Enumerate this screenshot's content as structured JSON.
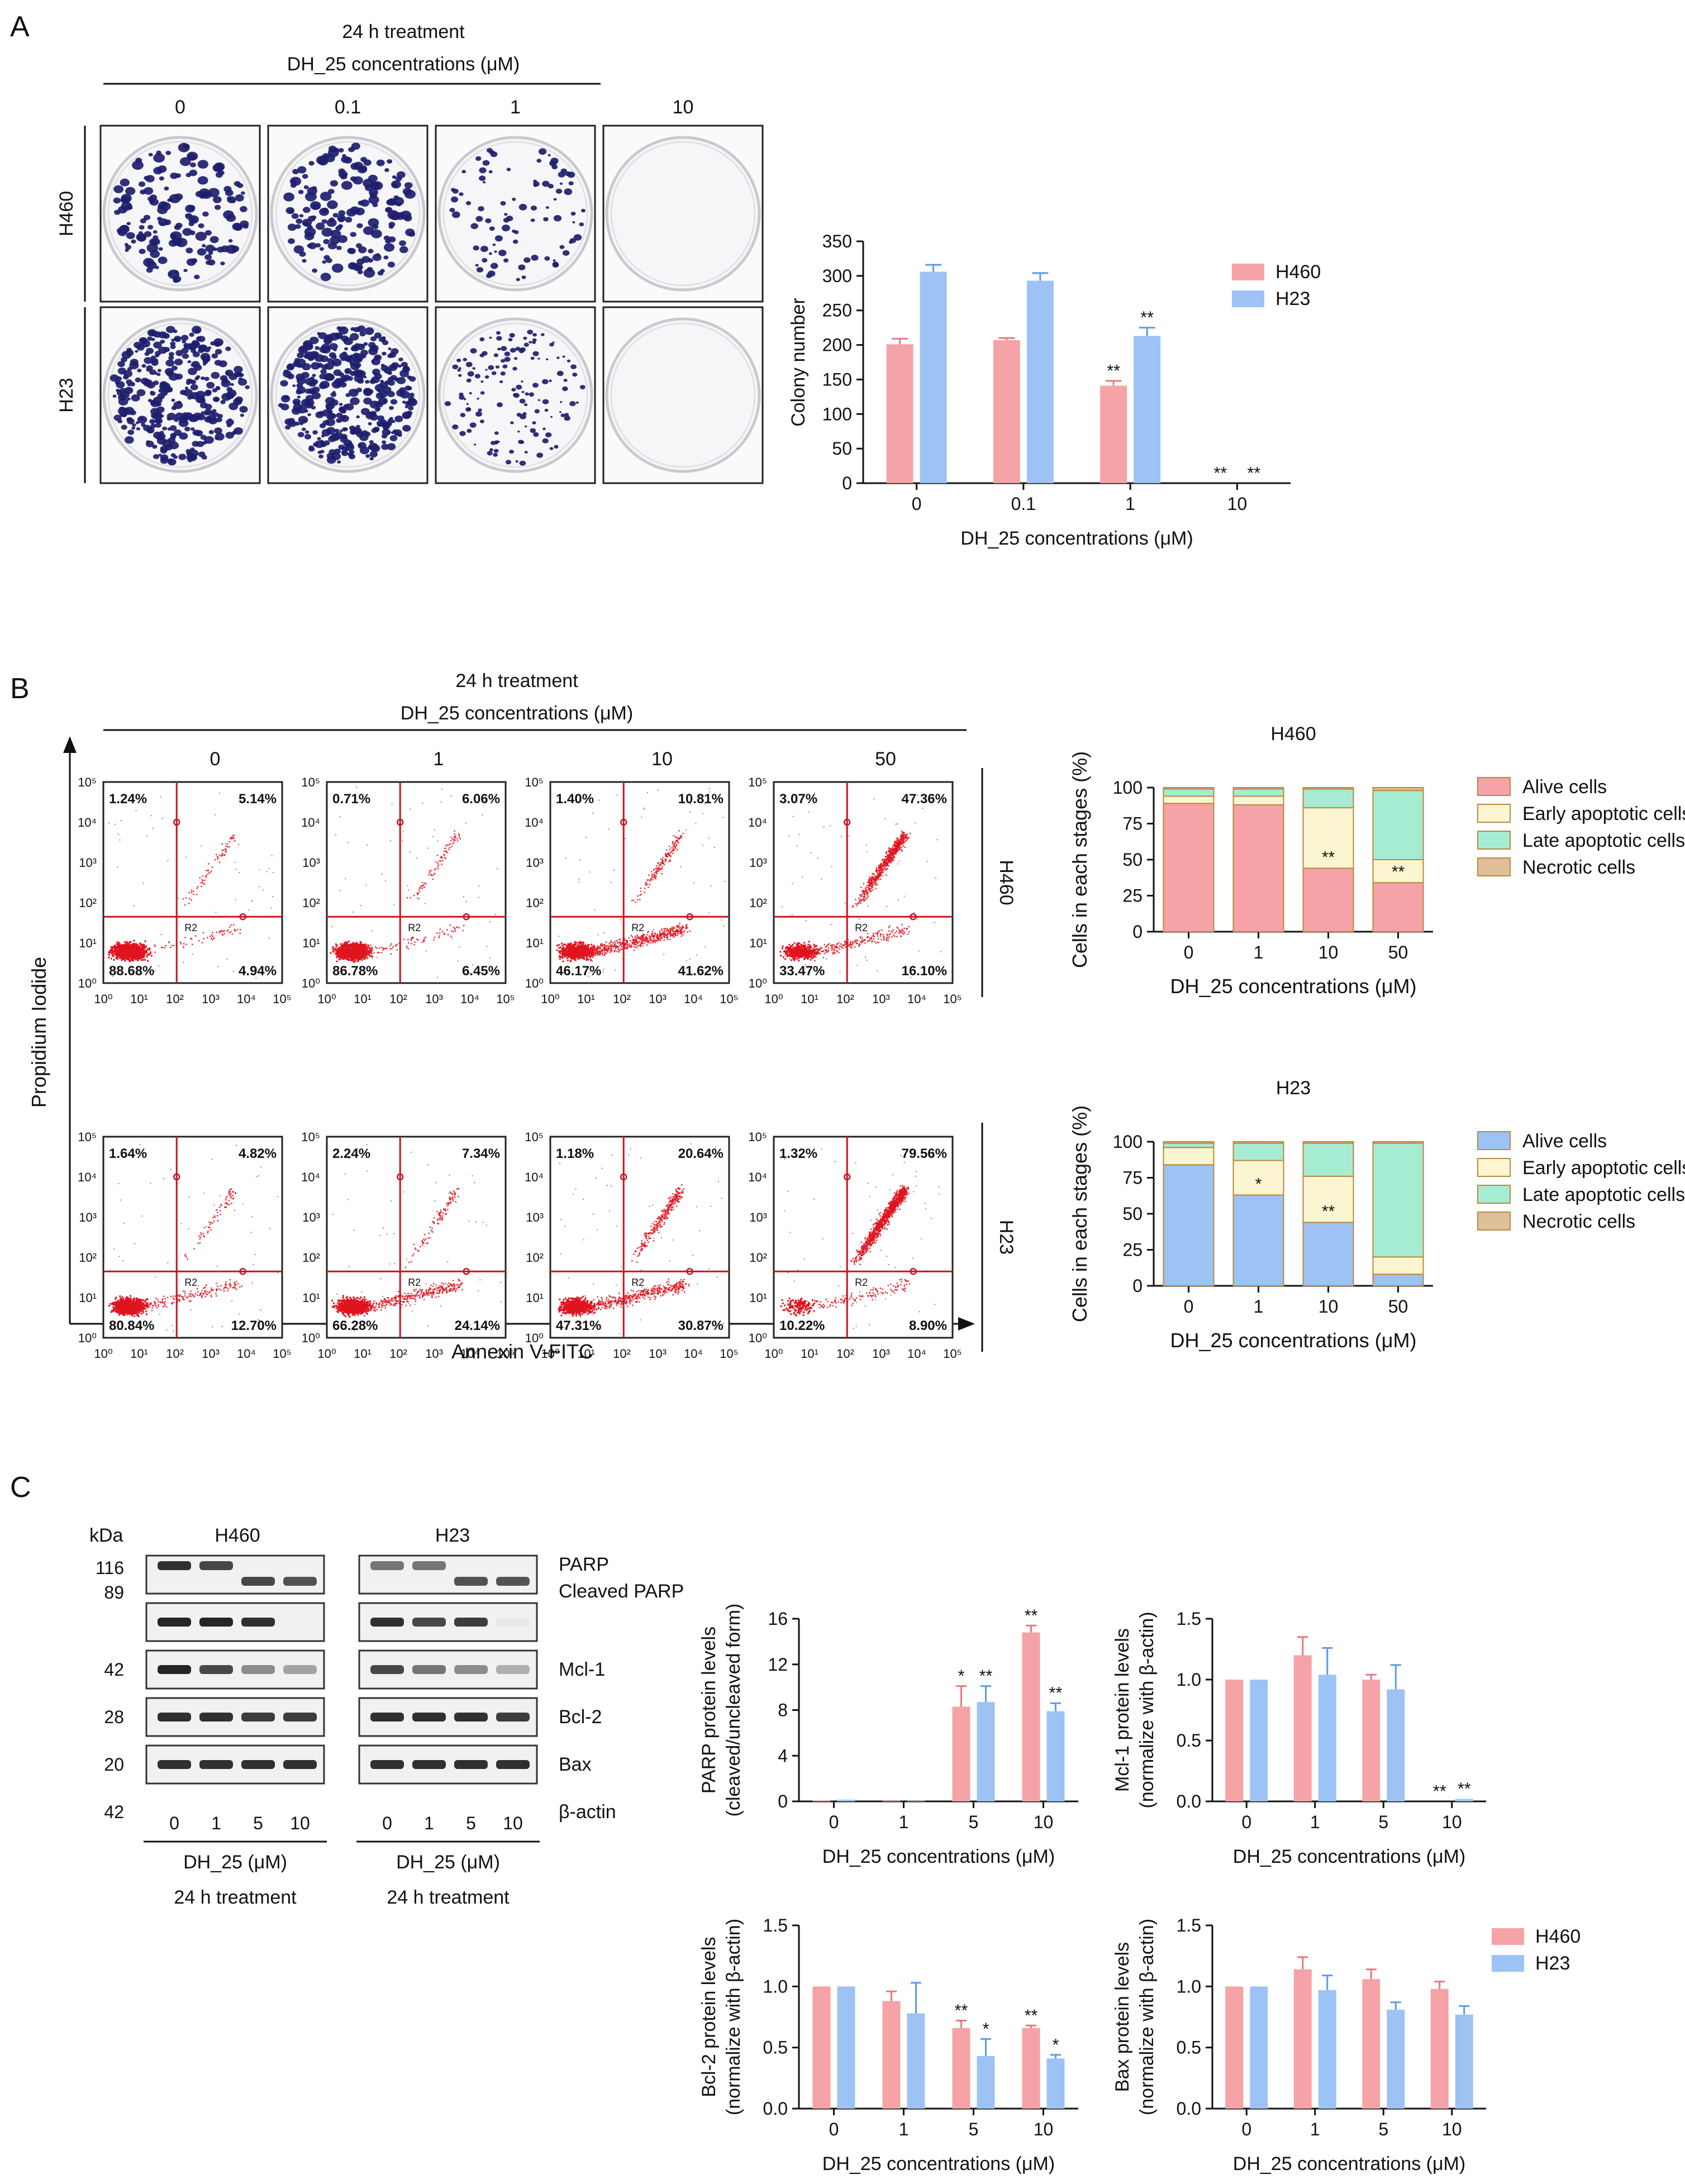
{
  "panel_labels": [
    "A",
    "B",
    "C"
  ],
  "colors": {
    "h460": "#f5a3a6",
    "h23": "#9cc3f3",
    "h460_dark": "#e8777c",
    "h23_dark": "#5c9be8",
    "early": "#fcf5d2",
    "late": "#a6ecd2",
    "necrotic": "#dfc09b",
    "dot": "#e0141e",
    "gate": "#c8141e",
    "colony": "#1d1e6e"
  },
  "panelA": {
    "treatment": "24 h treatment",
    "conc_title": "DH_25 concentrations (μM)",
    "columns": [
      "0",
      "0.1",
      "1",
      "10"
    ],
    "rows": [
      "H460",
      "H23"
    ]
  },
  "panelB": {
    "treatment": "24 h treatment",
    "conc_title": "DH_25 concentrations (μM)",
    "columns": [
      "0",
      "1",
      "10",
      "50"
    ],
    "rows": [
      "H460",
      "H23"
    ],
    "y_axis_label": "Propidium Iodide",
    "x_axis_label": "Annexin V-FITC",
    "gate_label": "R2",
    "tick_labels": [
      "10⁰",
      "10¹",
      "10²",
      "10³",
      "10⁴",
      "10⁵"
    ],
    "quadrants": [
      [
        [
          "1.24%",
          "5.14%",
          "88.68%",
          "4.94%"
        ],
        [
          "0.71%",
          "6.06%",
          "86.78%",
          "6.45%"
        ],
        [
          "1.40%",
          "10.81%",
          "46.17%",
          "41.62%"
        ],
        [
          "3.07%",
          "47.36%",
          "33.47%",
          "16.10%"
        ]
      ],
      [
        [
          "1.64%",
          "4.82%",
          "80.84%",
          "12.70%"
        ],
        [
          "2.24%",
          "7.34%",
          "66.28%",
          "24.14%"
        ],
        [
          "1.18%",
          "20.64%",
          "47.31%",
          "30.87%"
        ],
        [
          "1.32%",
          "79.56%",
          "10.22%",
          "8.90%"
        ]
      ]
    ]
  },
  "panelC": {
    "kda_label": "kDa",
    "cell_lines": [
      "H460",
      "H23"
    ],
    "markers": [
      {
        "kda": "116",
        "name": "PARP"
      },
      {
        "kda": "89",
        "name": "Cleaved PARP"
      },
      {
        "kda": "42",
        "name": "Mcl-1"
      },
      {
        "kda": "28",
        "name": "Bcl-2"
      },
      {
        "kda": "20",
        "name": "Bax"
      },
      {
        "kda": "42",
        "name": "β-actin"
      }
    ],
    "lane_labels": [
      "0",
      "1",
      "5",
      "10"
    ],
    "dose_label": "DH_25 (μM)",
    "treatment": "24 h treatment"
  },
  "chart_data": [
    {
      "id": "colony",
      "type": "bar",
      "title": "",
      "categories": [
        "0",
        "0.1",
        "1",
        "10"
      ],
      "xlabel": "DH_25 concentrations (μM)",
      "ylabel": "Colony number",
      "ylim": [
        0,
        350
      ],
      "yticks": [
        "0",
        "50",
        "100",
        "150",
        "200",
        "250",
        "300",
        "350"
      ],
      "series": [
        {
          "name": "H460",
          "values": [
            201,
            207,
            141,
            0
          ],
          "errors": [
            8,
            3,
            7,
            0
          ],
          "sig": [
            "",
            "",
            "**",
            "**"
          ]
        },
        {
          "name": "H23",
          "values": [
            306,
            293,
            213,
            0
          ],
          "errors": [
            10,
            11,
            12,
            0
          ],
          "sig": [
            "",
            "",
            "**",
            "**"
          ]
        }
      ],
      "legend": "top-right"
    },
    {
      "id": "stack_h460",
      "type": "bar",
      "stacked": true,
      "title": "H460",
      "categories": [
        "0",
        "1",
        "10",
        "50"
      ],
      "xlabel": "DH_25 concentrations (μM)",
      "ylabel": "Cells in each stages (%)",
      "ylim": [
        0,
        100
      ],
      "yticks": [
        "0",
        "25",
        "50",
        "75",
        "100"
      ],
      "series": [
        {
          "name": "Alive cells",
          "values": [
            89,
            88,
            44,
            34
          ]
        },
        {
          "name": "Early apoptotic cells",
          "values": [
            5,
            6,
            42,
            16
          ]
        },
        {
          "name": "Late apoptotic cells",
          "values": [
            5,
            5,
            13,
            48
          ]
        },
        {
          "name": "Necrotic cells",
          "values": [
            1,
            1,
            1,
            2
          ]
        }
      ],
      "sig": [
        "",
        "",
        "**",
        "**"
      ],
      "legend": "right"
    },
    {
      "id": "stack_h23",
      "type": "bar",
      "stacked": true,
      "title": "H23",
      "categories": [
        "0",
        "1",
        "10",
        "50"
      ],
      "xlabel": "DH_25 concentrations (μM)",
      "ylabel": "Cells in each stages (%)",
      "ylim": [
        0,
        100
      ],
      "yticks": [
        "0",
        "25",
        "50",
        "75",
        "100"
      ],
      "series": [
        {
          "name": "Alive cells",
          "values": [
            84,
            63,
            44,
            8
          ]
        },
        {
          "name": "Early apoptotic cells",
          "values": [
            12,
            24,
            32,
            12
          ]
        },
        {
          "name": "Late apoptotic cells",
          "values": [
            3,
            12,
            23,
            79
          ]
        },
        {
          "name": "Necrotic cells",
          "values": [
            1,
            1,
            1,
            1
          ]
        }
      ],
      "sig": [
        "",
        "*",
        "**",
        ""
      ],
      "legend": "right"
    },
    {
      "id": "parp",
      "type": "bar",
      "title": "",
      "categories": [
        "0",
        "1",
        "5",
        "10"
      ],
      "xlabel": "DH_25 concentrations (μM)",
      "ylabel": "PARP protein levels (cleaved/uncleaved form)",
      "ylim": [
        0,
        16
      ],
      "yticks": [
        "0",
        "4",
        "8",
        "12",
        "16"
      ],
      "series": [
        {
          "name": "H460",
          "values": [
            0.1,
            0.05,
            8.3,
            14.8
          ],
          "errors": [
            0,
            0,
            1.8,
            0.6
          ],
          "sig": [
            "",
            "",
            "*",
            "**"
          ]
        },
        {
          "name": "H23",
          "values": [
            0.15,
            0.05,
            8.7,
            7.9
          ],
          "errors": [
            0,
            0,
            1.4,
            0.7
          ],
          "sig": [
            "",
            "",
            "**",
            "**"
          ]
        }
      ]
    },
    {
      "id": "mcl1",
      "type": "bar",
      "title": "",
      "categories": [
        "0",
        "1",
        "5",
        "10"
      ],
      "xlabel": "DH_25 concentrations (μM)",
      "ylabel": "Mcl-1 protein levels (normalize with β-actin)",
      "ylim": [
        0,
        1.5
      ],
      "yticks": [
        "0.0",
        "0.5",
        "1.0",
        "1.5"
      ],
      "series": [
        {
          "name": "H460",
          "values": [
            1.0,
            1.2,
            1.0,
            0.0
          ],
          "errors": [
            0,
            0.15,
            0.04,
            0
          ],
          "sig": [
            "",
            "",
            "",
            "**"
          ]
        },
        {
          "name": "H23",
          "values": [
            1.0,
            1.04,
            0.92,
            0.02
          ],
          "errors": [
            0,
            0.22,
            0.2,
            0
          ],
          "sig": [
            "",
            "",
            "",
            "**"
          ]
        }
      ]
    },
    {
      "id": "bcl2",
      "type": "bar",
      "title": "",
      "categories": [
        "0",
        "1",
        "5",
        "10"
      ],
      "xlabel": "DH_25 concentrations (μM)",
      "ylabel": "Bcl-2 protein levels (normalize with β-actin)",
      "ylim": [
        0,
        1.5
      ],
      "yticks": [
        "0.0",
        "0.5",
        "1.0",
        "1.5"
      ],
      "series": [
        {
          "name": "H460",
          "values": [
            1.0,
            0.88,
            0.66,
            0.66
          ],
          "errors": [
            0,
            0.08,
            0.06,
            0.02
          ],
          "sig": [
            "",
            "",
            "**",
            "**"
          ]
        },
        {
          "name": "H23",
          "values": [
            1.0,
            0.78,
            0.43,
            0.41
          ],
          "errors": [
            0,
            0.25,
            0.14,
            0.03
          ],
          "sig": [
            "",
            "",
            "*",
            "*"
          ]
        }
      ]
    },
    {
      "id": "bax",
      "type": "bar",
      "title": "",
      "categories": [
        "0",
        "1",
        "5",
        "10"
      ],
      "xlabel": "DH_25 concentrations (μM)",
      "ylabel": "Bax protein levels (normalize with β-actin)",
      "ylim": [
        0,
        1.5
      ],
      "yticks": [
        "0.0",
        "0.5",
        "1.0",
        "1.5"
      ],
      "series": [
        {
          "name": "H460",
          "values": [
            1.0,
            1.14,
            1.06,
            0.98
          ],
          "errors": [
            0,
            0.1,
            0.08,
            0.06
          ],
          "sig": [
            "",
            "",
            "",
            ""
          ]
        },
        {
          "name": "H23",
          "values": [
            1.0,
            0.97,
            0.81,
            0.77
          ],
          "errors": [
            0,
            0.12,
            0.06,
            0.07
          ],
          "sig": [
            "",
            "",
            "",
            ""
          ]
        }
      ],
      "legend": "right"
    }
  ]
}
